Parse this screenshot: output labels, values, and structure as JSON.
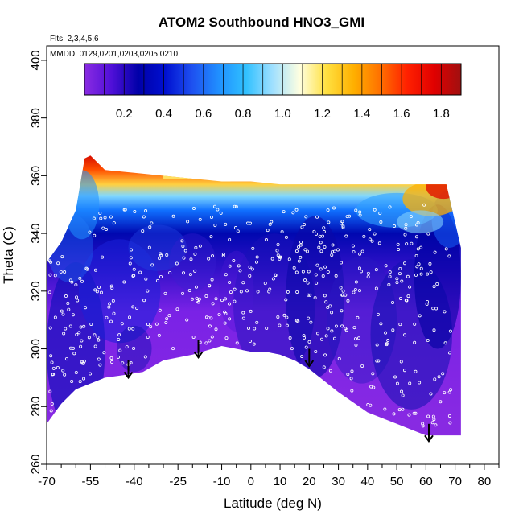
{
  "chart_data": {
    "type": "heatmap",
    "title": "ATOM2 Southbound HNO3_GMI",
    "flights_note": "Flts: 2,3,4,5,6",
    "dates_note": "MMDD: 0129,0201,0203,0205,0210",
    "xlabel": "Latitude (deg N)",
    "ylabel": "Theta (C)",
    "xlim": [
      -70,
      85
    ],
    "ylim": [
      260,
      405
    ],
    "x_ticks": [
      -70,
      -55,
      -40,
      -25,
      -10,
      0,
      10,
      20,
      30,
      40,
      50,
      60,
      70,
      80
    ],
    "x_minor_ticks": [
      -65,
      -60,
      -50,
      -45,
      -35,
      -30,
      -20,
      -15,
      -5,
      5,
      15,
      25,
      35,
      45,
      55,
      65,
      75,
      85
    ],
    "y_ticks": [
      260,
      280,
      300,
      320,
      340,
      360,
      380,
      400
    ],
    "colorbar": {
      "min": 0.0,
      "max": 1.9,
      "ticks": [
        0.2,
        0.4,
        0.6,
        0.8,
        1.0,
        1.2,
        1.4,
        1.6,
        1.8
      ],
      "colors": [
        "#8a2be2",
        "#5010d8",
        "#0000a8",
        "#0010d0",
        "#1e50f0",
        "#2090ff",
        "#30c0ff",
        "#a0e0ff",
        "#ffffe0",
        "#ffe040",
        "#ffb000",
        "#ff7000",
        "#ff2000",
        "#e00000",
        "#a01010"
      ]
    },
    "surface": [
      [
        -70,
        274
      ],
      [
        -65,
        281
      ],
      [
        -60,
        286
      ],
      [
        -55,
        288
      ],
      [
        -50,
        290
      ],
      [
        -43,
        291
      ],
      [
        -37,
        292
      ],
      [
        -30,
        296
      ],
      [
        -20,
        298
      ],
      [
        -10,
        301
      ],
      [
        -5,
        300
      ],
      [
        0,
        299
      ],
      [
        5,
        299
      ],
      [
        10,
        298
      ],
      [
        15,
        296
      ],
      [
        20,
        293
      ],
      [
        25,
        289
      ],
      [
        30,
        285
      ],
      [
        40,
        278
      ],
      [
        50,
        274
      ],
      [
        60,
        270
      ],
      [
        72,
        270
      ]
    ],
    "top": [
      [
        -70,
        330
      ],
      [
        -65,
        337
      ],
      [
        -60,
        348
      ],
      [
        -57,
        366
      ],
      [
        -55,
        367
      ],
      [
        -50,
        362
      ],
      [
        -40,
        361
      ],
      [
        -30,
        360
      ],
      [
        -20,
        359
      ],
      [
        -10,
        358
      ],
      [
        0,
        358
      ],
      [
        10,
        357
      ],
      [
        20,
        357
      ],
      [
        30,
        357
      ],
      [
        40,
        357
      ],
      [
        50,
        357
      ],
      [
        60,
        357
      ],
      [
        67,
        357
      ],
      [
        72,
        335
      ]
    ],
    "arrows_x": [
      -42,
      -18,
      20,
      61
    ],
    "arrows_y": [
      290,
      297,
      294,
      268
    ]
  }
}
